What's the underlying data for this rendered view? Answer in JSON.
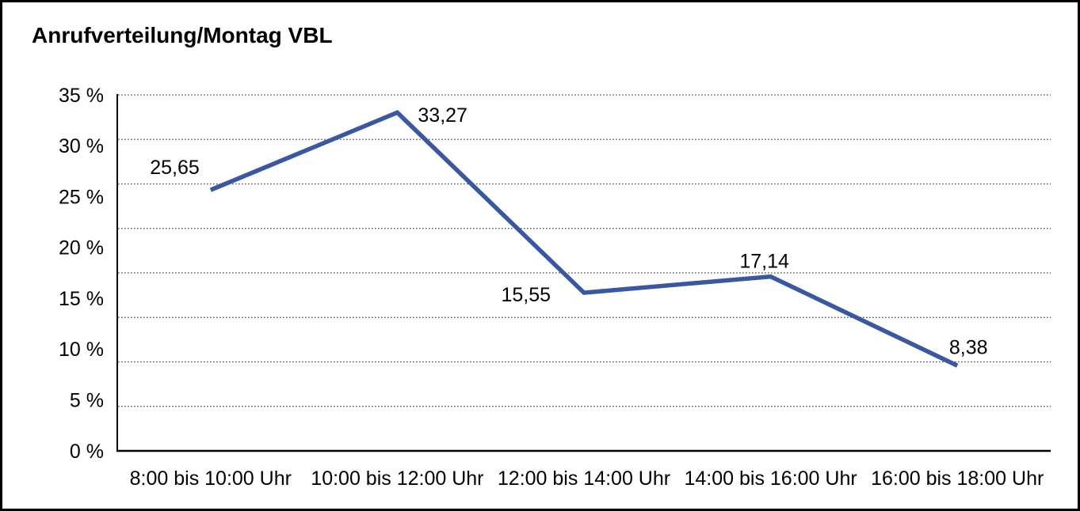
{
  "window": {
    "background": "#ffffff",
    "border_color": "#000000"
  },
  "chart_data": {
    "type": "line",
    "title": "Anrufverteilung/Montag VBL",
    "categories": [
      "8:00 bis 10:00 Uhr",
      "10:00 bis 12:00 Uhr",
      "12:00 bis 14:00 Uhr",
      "14:00 bis 16:00 Uhr",
      "16:00 bis 18:00 Uhr"
    ],
    "series": [
      {
        "name": "Anrufverteilung Montag VBL",
        "values": [
          25.65,
          33.27,
          15.55,
          17.14,
          8.38
        ],
        "value_labels": [
          "25,65",
          "33,27",
          "15,55",
          "17,14",
          "8,38"
        ]
      }
    ],
    "y_ticks": [
      "35 %",
      "30 %",
      "25 %",
      "20 %",
      "15 %",
      "10 %",
      "5 %",
      "0 %"
    ],
    "ylim": [
      0,
      35
    ],
    "xlabel": "",
    "ylabel": "",
    "legend": "none",
    "grid": "horizontal-dotted",
    "line_color": "#3A57A2",
    "grid_color": "#444444",
    "axis_color": "#000000",
    "text_color": "#000000"
  }
}
